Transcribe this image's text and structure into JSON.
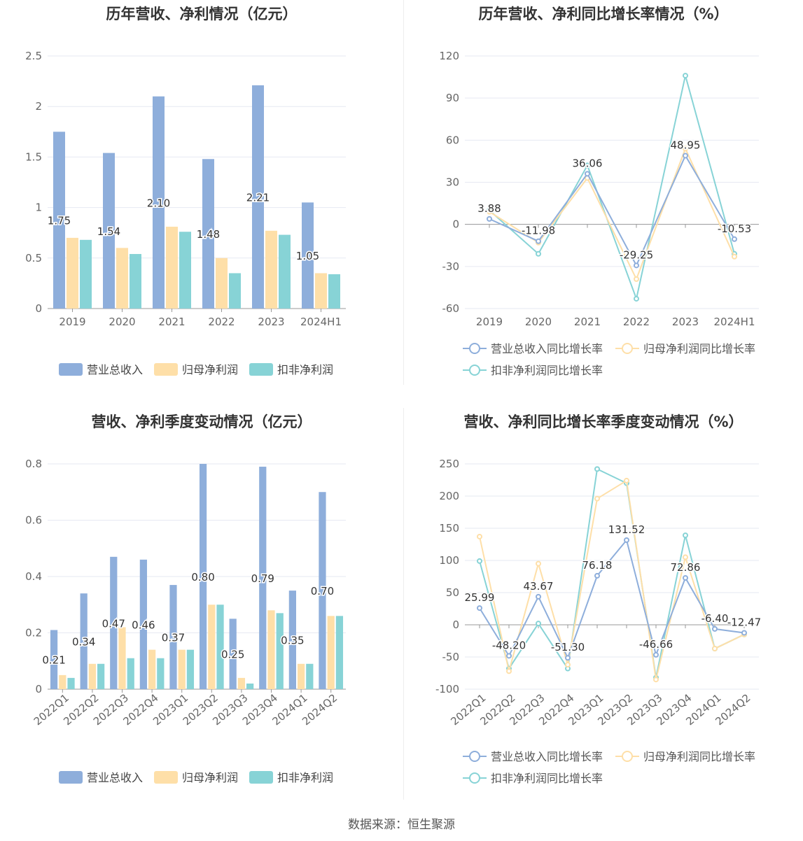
{
  "colors": {
    "revenue": "#8eaedb",
    "parent_profit": "#fedfa8",
    "deducted_profit": "#87d3d6",
    "axis_text": "#666666",
    "grid": "#e6e9f2"
  },
  "footer": {
    "source": "数据来源：恒生聚源"
  },
  "charts": [
    {
      "title": "历年营收、净利情况（亿元）",
      "chart_data": {
        "type": "bar",
        "categories": [
          "2019",
          "2020",
          "2021",
          "2022",
          "2023",
          "2024H1"
        ],
        "ylim": [
          0,
          2.5
        ],
        "yticks": [
          "0",
          "0.5",
          "1",
          "1.5",
          "2",
          "2.5"
        ],
        "series": [
          {
            "name": "营业总收入",
            "values": [
              1.75,
              1.54,
              2.1,
              1.48,
              2.21,
              1.05
            ],
            "labels": [
              "1.75",
              "1.54",
              "2.10",
              "1.48",
              "2.21",
              "1.05"
            ]
          },
          {
            "name": "归母净利润",
            "values": [
              0.7,
              0.6,
              0.81,
              0.5,
              0.77,
              0.35
            ]
          },
          {
            "name": "扣非净利润",
            "values": [
              0.68,
              0.54,
              0.76,
              0.35,
              0.73,
              0.34
            ]
          }
        ]
      }
    },
    {
      "title": "历年营收、净利同比增长率情况（%）",
      "chart_data": {
        "type": "line",
        "categories": [
          "2019",
          "2020",
          "2021",
          "2022",
          "2023",
          "2024H1"
        ],
        "ylim": [
          -60,
          120
        ],
        "yticks": [
          "-60",
          "-30",
          "0",
          "30",
          "60",
          "90",
          "120"
        ],
        "series": [
          {
            "name": "营业总收入同比增长率",
            "values": [
              3.88,
              -11.98,
              36.06,
              -29.25,
              48.95,
              -10.53
            ],
            "labels": [
              "3.88",
              "-11.98",
              "36.06",
              "-29.25",
              "48.95",
              "-10.53"
            ]
          },
          {
            "name": "归母净利润同比增长率",
            "values": [
              9,
              -13,
              33,
              -39,
              54,
              -23
            ]
          },
          {
            "name": "扣非净利润同比增长率",
            "values": [
              10,
              -21,
              42,
              -53,
              106,
              -21
            ]
          }
        ]
      }
    },
    {
      "title": "营收、净利季度变动情况（亿元）",
      "chart_data": {
        "type": "bar",
        "categories": [
          "2022Q1",
          "2022Q2",
          "2022Q3",
          "2022Q4",
          "2023Q1",
          "2023Q2",
          "2023Q3",
          "2023Q4",
          "2024Q1",
          "2024Q2"
        ],
        "ylim": [
          0,
          0.8
        ],
        "yticks": [
          "0",
          "0.2",
          "0.4",
          "0.6",
          "0.8"
        ],
        "series": [
          {
            "name": "营业总收入",
            "values": [
              0.21,
              0.34,
              0.47,
              0.46,
              0.37,
              0.8,
              0.25,
              0.79,
              0.35,
              0.7
            ],
            "labels": [
              "0.21",
              "0.34",
              "0.47",
              "0.46",
              "0.37",
              "0.80",
              "0.25",
              "0.79",
              "0.35",
              "0.70"
            ]
          },
          {
            "name": "归母净利润",
            "values": [
              0.05,
              0.09,
              0.22,
              0.14,
              0.14,
              0.3,
              0.04,
              0.28,
              0.09,
              0.26
            ]
          },
          {
            "name": "扣非净利润",
            "values": [
              0.04,
              0.09,
              0.11,
              0.11,
              0.14,
              0.3,
              0.02,
              0.27,
              0.09,
              0.26
            ]
          }
        ]
      }
    },
    {
      "title": "营收、净利同比增长率季度变动情况（%）",
      "chart_data": {
        "type": "line",
        "categories": [
          "2022Q1",
          "2022Q2",
          "2022Q3",
          "2022Q4",
          "2023Q1",
          "2023Q2",
          "2023Q3",
          "2023Q4",
          "2024Q1",
          "2024Q2"
        ],
        "ylim": [
          -100,
          250
        ],
        "yticks": [
          "-100",
          "-50",
          "0",
          "50",
          "100",
          "150",
          "200",
          "250"
        ],
        "series": [
          {
            "name": "营业总收入同比增长率",
            "values": [
              25.99,
              -48.2,
              43.67,
              -51.3,
              76.18,
              131.52,
              -46.66,
              72.86,
              -6.4,
              -12.47
            ],
            "labels": [
              "25.99",
              "-48.20",
              "43.67",
              "-51.30",
              "76.18",
              "131.52",
              "-46.66",
              "72.86",
              "-6.40",
              "-12.47"
            ]
          },
          {
            "name": "归母净利润同比增长率",
            "values": [
              137,
              -72,
              95,
              -62,
              196,
              224,
              -85,
              105,
              -37,
              -15
            ]
          },
          {
            "name": "扣非净利润同比增长率",
            "values": [
              99,
              -68,
              2,
              -68,
              242,
              220,
              -82,
              139,
              -37,
              -15
            ]
          }
        ]
      }
    }
  ]
}
